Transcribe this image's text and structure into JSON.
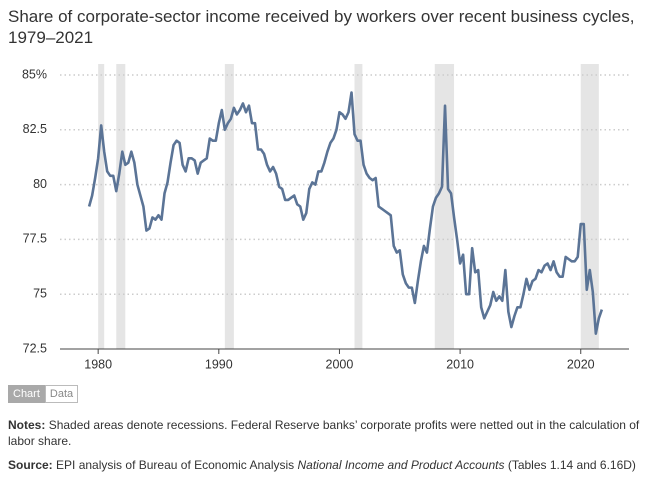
{
  "chart_data": {
    "type": "line",
    "title": "Share of corporate-sector income received by workers over recent business cycles, 1979–2021",
    "x": [
      1979.25,
      1979.5,
      1979.75,
      1980,
      1980.25,
      1980.5,
      1980.75,
      1981,
      1981.25,
      1981.5,
      1981.75,
      1982,
      1982.25,
      1982.5,
      1982.75,
      1983,
      1983.25,
      1983.5,
      1983.75,
      1984,
      1984.25,
      1984.5,
      1984.75,
      1985,
      1985.25,
      1985.5,
      1985.75,
      1986,
      1986.25,
      1986.5,
      1986.75,
      1987,
      1987.25,
      1987.5,
      1987.75,
      1988,
      1988.25,
      1988.5,
      1988.75,
      1989,
      1989.25,
      1989.5,
      1989.75,
      1990,
      1990.25,
      1990.5,
      1990.75,
      1991,
      1991.25,
      1991.5,
      1991.75,
      1992,
      1992.25,
      1992.5,
      1992.75,
      1993,
      1993.25,
      1993.5,
      1993.75,
      1994,
      1994.25,
      1994.5,
      1994.75,
      1995,
      1995.25,
      1995.5,
      1995.75,
      1996,
      1996.25,
      1996.5,
      1996.75,
      1997,
      1997.25,
      1997.5,
      1997.75,
      1998,
      1998.25,
      1998.5,
      1998.75,
      1999,
      1999.25,
      1999.5,
      1999.75,
      2000,
      2000.25,
      2000.5,
      2000.75,
      2001,
      2001.25,
      2001.5,
      2001.75,
      2002,
      2002.25,
      2002.5,
      2002.75,
      2003,
      2003.25,
      2003.5,
      2003.75,
      2004,
      2004.25,
      2004.5,
      2004.75,
      2005,
      2005.25,
      2005.5,
      2005.75,
      2006,
      2006.25,
      2006.5,
      2006.75,
      2007,
      2007.25,
      2007.5,
      2007.75,
      2008,
      2008.25,
      2008.5,
      2008.75,
      2009,
      2009.25,
      2009.5,
      2009.75,
      2010,
      2010.25,
      2010.5,
      2010.75,
      2011,
      2011.25,
      2011.5,
      2011.75,
      2012,
      2012.25,
      2012.5,
      2012.75,
      2013,
      2013.25,
      2013.5,
      2013.75,
      2014,
      2014.25,
      2014.5,
      2014.75,
      2015,
      2015.25,
      2015.5,
      2015.75,
      2016,
      2016.25,
      2016.5,
      2016.75,
      2017,
      2017.25,
      2017.5,
      2017.75,
      2018,
      2018.25,
      2018.5,
      2018.75,
      2019,
      2019.25,
      2019.5,
      2019.75,
      2020,
      2020.25,
      2020.5,
      2020.75,
      2021,
      2021.25,
      2021.5,
      2021.75
    ],
    "values": [
      79.0,
      79.5,
      80.3,
      81.2,
      82.7,
      81.5,
      80.6,
      80.4,
      80.4,
      79.7,
      80.5,
      81.5,
      80.9,
      81.0,
      81.5,
      81.0,
      80.0,
      79.5,
      79.0,
      77.9,
      78.0,
      78.5,
      78.4,
      78.6,
      78.4,
      79.6,
      80.1,
      81.0,
      81.8,
      82.0,
      81.9,
      80.9,
      80.6,
      81.2,
      81.2,
      81.1,
      80.5,
      81.0,
      81.1,
      81.2,
      82.1,
      82.0,
      82.0,
      82.8,
      83.4,
      82.5,
      82.8,
      83.0,
      83.5,
      83.2,
      83.4,
      83.7,
      83.3,
      83.6,
      82.8,
      82.8,
      81.6,
      81.6,
      81.4,
      80.9,
      80.6,
      80.8,
      80.5,
      79.9,
      79.8,
      79.3,
      79.3,
      79.4,
      79.5,
      79.1,
      79.0,
      78.4,
      78.7,
      79.8,
      80.1,
      80.0,
      80.6,
      80.6,
      81.0,
      81.5,
      81.9,
      82.1,
      82.5,
      83.3,
      83.2,
      83.0,
      83.3,
      84.2,
      82.3,
      82.0,
      82.0,
      80.9,
      80.5,
      80.3,
      80.2,
      80.3,
      79.0,
      78.9,
      78.8,
      78.7,
      78.6,
      77.2,
      76.9,
      77.0,
      75.9,
      75.5,
      75.3,
      75.3,
      74.6,
      75.6,
      76.5,
      77.2,
      76.9,
      78.0,
      79.0,
      79.4,
      79.6,
      79.9,
      83.6,
      79.8,
      79.6,
      78.5,
      77.5,
      76.4,
      76.8,
      75.0,
      75.0,
      77.1,
      76.0,
      76.1,
      74.4,
      73.9,
      74.2,
      74.5,
      75.1,
      74.7,
      74.9,
      74.7,
      76.1,
      74.2,
      73.5,
      74.0,
      74.4,
      74.4,
      75.0,
      75.7,
      75.2,
      75.6,
      75.7,
      76.1,
      76.0,
      76.3,
      76.4,
      76.1,
      76.5,
      76.0,
      75.8,
      75.8,
      76.7,
      76.6,
      76.5,
      76.5,
      76.7,
      78.2,
      78.2,
      75.2,
      76.1,
      75.1,
      73.2,
      73.9,
      74.3
    ],
    "color": "#5b7496",
    "recessions": [
      [
        1980.0,
        1980.5
      ],
      [
        1981.5,
        1982.25
      ],
      [
        1990.5,
        1991.25
      ],
      [
        2001.25,
        2001.9
      ],
      [
        2007.9,
        2009.5
      ],
      [
        2020.0,
        2021.5
      ]
    ],
    "recession_color": "#e5e5e5",
    "xlim": [
      1977.5,
      2024
    ],
    "xticks": [
      1980,
      1990,
      2000,
      2010,
      2020
    ],
    "ylim": [
      72.5,
      85.5
    ],
    "yticks": [
      72.5,
      75,
      77.5,
      80,
      82.5,
      {
        "value": 85,
        "label": "85%"
      }
    ],
    "grid": true,
    "tabs": [
      "Chart",
      "Data"
    ],
    "notes_label": "Notes:",
    "notes": "Shaded areas denote recessions. Federal Reserve banks’ corporate profits were netted out in the calculation of labor share.",
    "source_label": "Source:",
    "source_text": "EPI analysis of Bureau of Economic Analysis ",
    "source_title": "National Income and Product Accounts",
    "source_tail": " (Tables 1.14 and 6.16D)"
  }
}
